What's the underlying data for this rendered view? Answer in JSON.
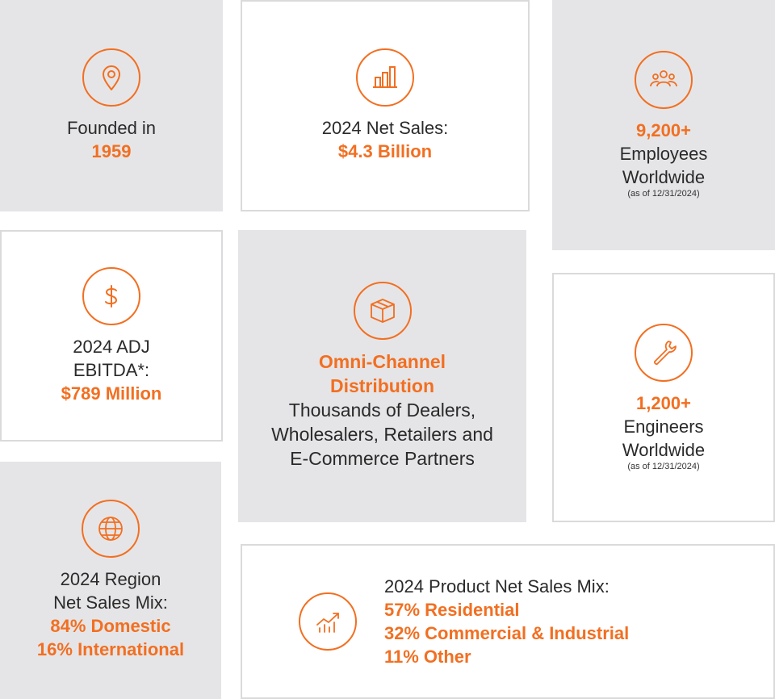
{
  "founded": {
    "label": "Founded in",
    "value": "1959",
    "icon": "location-pin-icon"
  },
  "net_sales": {
    "label": "2024 Net Sales:",
    "value": "$4.3 Billion",
    "icon": "bar-chart-icon"
  },
  "employees": {
    "value": "9,200+",
    "line1": "Employees",
    "line2": "Worldwide",
    "note": "(as of 12/31/2024)",
    "icon": "people-icon"
  },
  "ebitda": {
    "line1": "2024 ADJ",
    "line2": "EBITDA*:",
    "value": "$789 Million",
    "icon": "dollar-icon"
  },
  "distribution": {
    "title_line1": "Omni-Channel",
    "title_line2": "Distribution",
    "desc_line1": "Thousands of Dealers,",
    "desc_line2": "Wholesalers, Retailers and",
    "desc_line3": "E-Commerce Partners",
    "icon": "box-icon"
  },
  "engineers": {
    "value": "1,200+",
    "line1": "Engineers",
    "line2": "Worldwide",
    "note": "(as of 12/31/2024)",
    "icon": "wrench-icon"
  },
  "region_mix": {
    "line1": "2024 Region",
    "line2": "Net Sales Mix:",
    "value1": "84% Domestic",
    "value2": "16% International",
    "icon": "globe-icon"
  },
  "product_mix": {
    "label": "2024 Product Net Sales Mix:",
    "value1": "57% Residential",
    "value2": "32% Commercial & Industrial",
    "value3": "11% Other",
    "icon": "growth-chart-icon"
  },
  "colors": {
    "accent": "#f26f21",
    "gray_card": "#e5e5e7",
    "border": "#dadadc"
  }
}
